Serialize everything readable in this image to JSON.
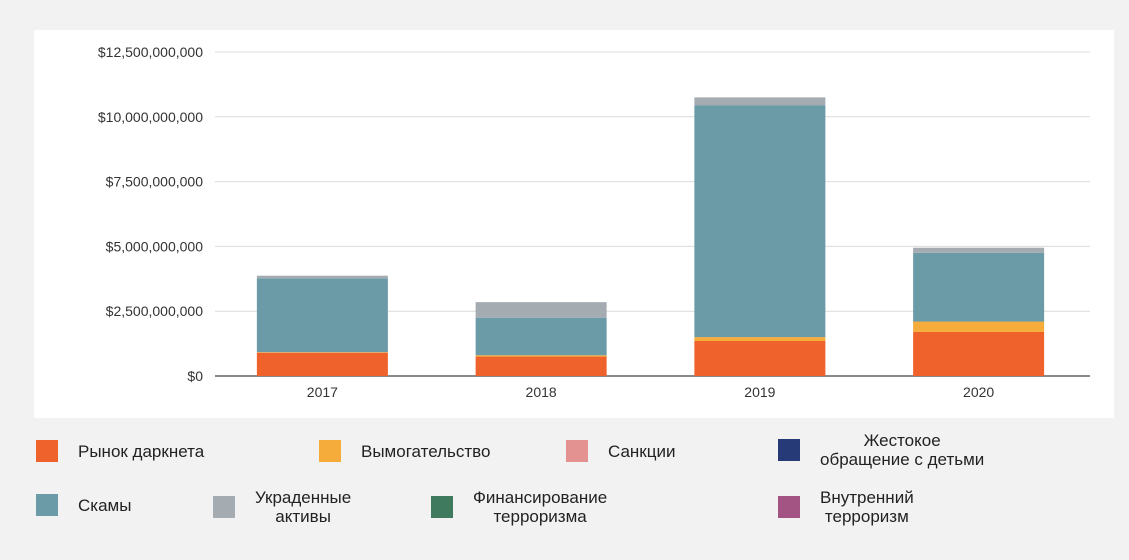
{
  "chart_data": {
    "type": "bar",
    "stacked": true,
    "categories": [
      "2017",
      "2018",
      "2019",
      "2020"
    ],
    "ylim": [
      0,
      12500000000
    ],
    "yticks": [
      "$0",
      "$2,500,000,000",
      "$5,000,000,000",
      "$7,500,000,000",
      "$10,000,000,000",
      "$12,500,000,000"
    ],
    "ytick_values": [
      0,
      2500000000,
      5000000000,
      7500000000,
      10000000000,
      12500000000
    ],
    "grid": true,
    "legend_position": "bottom",
    "series": [
      {
        "name": "Рынок даркнета",
        "color": "#f0622b",
        "values": [
          900000000,
          750000000,
          1350000000,
          1700000000
        ]
      },
      {
        "name": "Вымогательство",
        "color": "#f5ac3b",
        "values": [
          20000000,
          50000000,
          150000000,
          400000000
        ]
      },
      {
        "name": "Санкции",
        "color": "#e39191",
        "values": [
          0,
          0,
          0,
          0
        ]
      },
      {
        "name": "Жестокое\nобращение с детьми",
        "color": "#273a78",
        "values": [
          0,
          0,
          0,
          0
        ]
      },
      {
        "name": "Скамы",
        "color": "#6b9ba7",
        "values": [
          2850000000,
          1450000000,
          8950000000,
          2650000000
        ]
      },
      {
        "name": "Украденные\nактивы",
        "color": "#a5acb1",
        "values": [
          100000000,
          600000000,
          300000000,
          200000000
        ]
      },
      {
        "name": "Финансирование\nтерроризма",
        "color": "#3f7a5e",
        "values": [
          0,
          0,
          0,
          0
        ]
      },
      {
        "name": "Внутренний\nтерроризм",
        "color": "#a35482",
        "values": [
          0,
          0,
          0,
          0
        ]
      }
    ]
  }
}
